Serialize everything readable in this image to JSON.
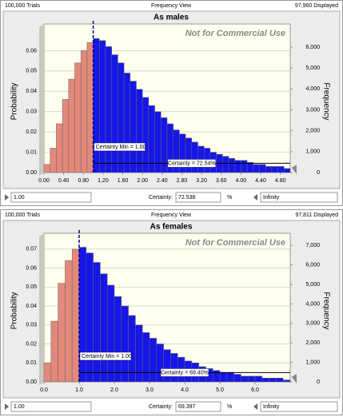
{
  "chart_data": [
    {
      "type": "histogram",
      "title": "As males",
      "annotation": "Not for Commercial Use",
      "ylabel": "Probability",
      "y2label": "Frequency",
      "bins": [
        0,
        0.125,
        0.25,
        0.375,
        0.5,
        0.625,
        0.75,
        0.875,
        1,
        1.125,
        1.25,
        1.375,
        1.5,
        1.625,
        1.75,
        1.875,
        2,
        2.125,
        2.25,
        2.375,
        2.5,
        2.625,
        2.75,
        2.875,
        3,
        3.125,
        3.25,
        3.375,
        3.5,
        3.625,
        3.75,
        3.875,
        4,
        4.125,
        4.25,
        4.375,
        4.5,
        4.625,
        4.75,
        4.875,
        5
      ],
      "values": [
        0.004,
        0.012,
        0.024,
        0.036,
        0.046,
        0.054,
        0.06,
        0.064,
        0.066,
        0.065,
        0.062,
        0.058,
        0.054,
        0.049,
        0.045,
        0.041,
        0.037,
        0.033,
        0.03,
        0.027,
        0.024,
        0.021,
        0.019,
        0.017,
        0.015,
        0.013,
        0.012,
        0.01,
        0.009,
        0.008,
        0.007,
        0.006,
        0.006,
        0.005,
        0.004,
        0.004,
        0.003,
        0.003,
        0.003,
        0.002
      ],
      "colors": {
        "below": "#e3887a",
        "above": "#1616e8"
      },
      "xlim": [
        0,
        5
      ],
      "xticks": [
        {
          "value": 0,
          "label": "0.00"
        },
        {
          "value": 0.4,
          "label": "0.40"
        },
        {
          "value": 0.8,
          "label": "0.80"
        },
        {
          "value": 1.2,
          "label": "1.20"
        },
        {
          "value": 1.6,
          "label": "1.60"
        },
        {
          "value": 2,
          "label": "2.00"
        },
        {
          "value": 2.4,
          "label": "2.40"
        },
        {
          "value": 2.8,
          "label": "2.80"
        },
        {
          "value": 3.2,
          "label": "3.20"
        },
        {
          "value": 3.6,
          "label": "3.60"
        },
        {
          "value": 4,
          "label": "4.00"
        },
        {
          "value": 4.4,
          "label": "4.40"
        },
        {
          "value": 4.8,
          "label": "4.80"
        }
      ],
      "ylim": [
        0,
        0.07
      ],
      "yticks": [
        {
          "value": 0,
          "label": "0.00"
        },
        0.01,
        0.02,
        0.03,
        0.04,
        0.05,
        0.06
      ],
      "y2lim": [
        0,
        6800
      ],
      "y2ticks": [
        0,
        {
          "value": 1000,
          "label": "1,000"
        },
        {
          "value": 2000,
          "label": "2,000"
        },
        {
          "value": 3000,
          "label": "3,000"
        },
        {
          "value": 4000,
          "label": "4,000"
        },
        {
          "value": 5000,
          "label": "5,000"
        },
        {
          "value": 6000,
          "label": "6,000"
        }
      ],
      "grid": true,
      "marker": {
        "value": 1,
        "label": "Certainty Min = 1.00"
      },
      "certainty_label": "Certainty = 72.54%"
    },
    {
      "type": "histogram",
      "title": "As females",
      "annotation": "Not for Commercial Use",
      "ylabel": "Probability",
      "y2label": "Frequency",
      "bins": [
        0,
        0.2,
        0.4,
        0.6,
        0.8,
        1,
        1.2,
        1.4,
        1.6,
        1.8,
        2,
        2.2,
        2.4,
        2.6,
        2.8,
        3,
        3.2,
        3.4,
        3.6,
        3.8,
        4,
        4.2,
        4.4,
        4.6,
        4.8,
        5,
        5.2,
        5.4,
        5.6,
        5.8,
        6,
        6.2,
        6.4,
        6.6,
        6.8,
        7
      ],
      "values": [
        0.01,
        0.032,
        0.052,
        0.064,
        0.07,
        0.071,
        0.068,
        0.063,
        0.057,
        0.051,
        0.045,
        0.04,
        0.035,
        0.03,
        0.026,
        0.023,
        0.02,
        0.017,
        0.015,
        0.013,
        0.011,
        0.01,
        0.008,
        0.007,
        0.006,
        0.005,
        0.005,
        0.004,
        0.003,
        0.003,
        0.003,
        0.002,
        0.002,
        0.002,
        0.001
      ],
      "colors": {
        "below": "#e3887a",
        "above": "#1616e8"
      },
      "xlim": [
        0,
        7
      ],
      "xticks": [
        {
          "value": 0,
          "label": "0.0"
        },
        {
          "value": 1,
          "label": "1.0"
        },
        {
          "value": 2,
          "label": "2.0"
        },
        {
          "value": 3,
          "label": "3.0"
        },
        {
          "value": 4,
          "label": "4.0"
        },
        {
          "value": 5,
          "label": "5.0"
        },
        {
          "value": 6,
          "label": "6.0"
        }
      ],
      "ylim": [
        0,
        0.075
      ],
      "yticks": [
        {
          "value": 0,
          "label": "0.00"
        },
        0.01,
        0.02,
        0.03,
        0.04,
        0.05,
        0.06,
        0.07
      ],
      "y2lim": [
        0,
        7300
      ],
      "y2ticks": [
        0,
        {
          "value": 1000,
          "label": "1,000"
        },
        {
          "value": 2000,
          "label": "2,000"
        },
        {
          "value": 3000,
          "label": "3,000"
        },
        {
          "value": 4000,
          "label": "4,000"
        },
        {
          "value": 5000,
          "label": "5,000"
        },
        {
          "value": 6000,
          "label": "6,000"
        },
        {
          "value": 7000,
          "label": "7,000"
        }
      ],
      "grid": true,
      "marker": {
        "value": 1,
        "label": "Certainty Min = 1.00"
      },
      "certainty_label": "Certainty = 69.40%"
    }
  ],
  "panels": [
    {
      "header": {
        "left": "100,000 Trials",
        "center": "Frequency View",
        "right": "97,960 Displayed"
      },
      "footer": {
        "min": "1.00",
        "certainty_label": "Certainty:",
        "certainty": "72.538",
        "unit": "%",
        "max": "Infinity"
      }
    },
    {
      "header": {
        "left": "100,000 Trials",
        "center": "Frequency View",
        "right": "97,811 Displayed"
      },
      "footer": {
        "min": "1.00",
        "certainty_label": "Certainty:",
        "certainty": "69.397",
        "unit": "%",
        "max": "Infinity"
      }
    }
  ]
}
